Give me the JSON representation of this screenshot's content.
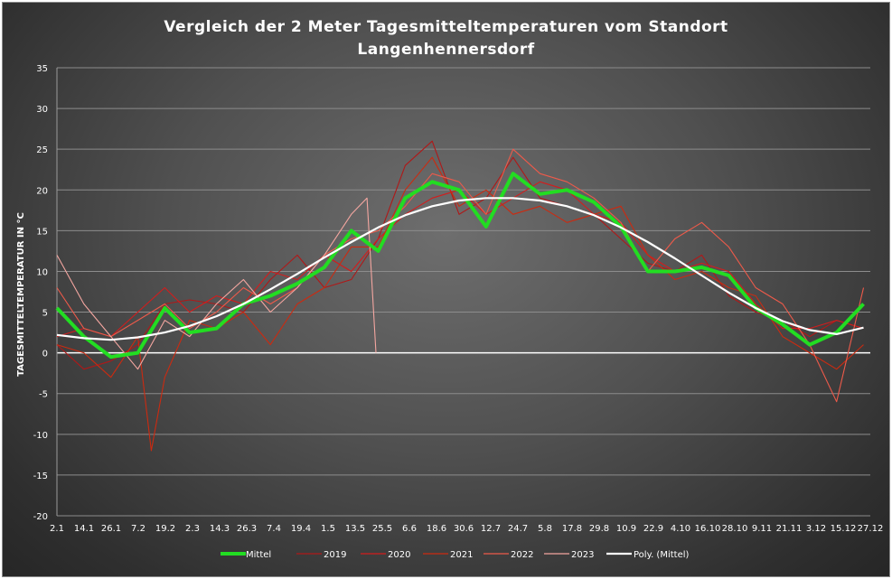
{
  "chart_data": {
    "type": "line",
    "title_line1": "Vergleich der 2 Meter Tagesmitteltemperaturen vom Standort",
    "title_line2": "Langenhennersdorf",
    "ylabel": "TAGESMITTELTEMPERATUR IN °C",
    "xlabel": "",
    "ylim": [
      -20,
      35
    ],
    "yticks": [
      35,
      30,
      25,
      20,
      15,
      10,
      5,
      0,
      -5,
      -10,
      -15,
      -20
    ],
    "grid": true,
    "legend_position": "bottom",
    "x_tick_labels": [
      "2.1",
      "14.1",
      "26.1",
      "7.2",
      "19.2",
      "2.3",
      "14.3",
      "26.3",
      "7.4",
      "19.4",
      "1.5",
      "13.5",
      "25.5",
      "6.6",
      "18.6",
      "30.6",
      "12.7",
      "24.7",
      "5.8",
      "17.8",
      "29.8",
      "10.9",
      "22.9",
      "4.10",
      "16.10",
      "28.10",
      "9.11",
      "21.11",
      "3.12",
      "15.12",
      "27.12"
    ],
    "x_day_range": [
      2,
      364
    ],
    "series": [
      {
        "name": "Mittel",
        "color": "#22dd22",
        "x": [
          2,
          14,
          26,
          38,
          50,
          61,
          73,
          85,
          97,
          109,
          121,
          133,
          145,
          157,
          169,
          181,
          193,
          205,
          217,
          229,
          241,
          253,
          265,
          277,
          289,
          301,
          313,
          325,
          337,
          349,
          361
        ],
        "values": [
          5.5,
          2.0,
          -0.5,
          0.0,
          5.5,
          2.5,
          3.0,
          6.0,
          7.0,
          8.5,
          10.5,
          15.0,
          12.5,
          19.0,
          21.0,
          20.0,
          15.5,
          22.0,
          19.5,
          20.0,
          18.5,
          15.5,
          10.0,
          10.0,
          10.5,
          9.5,
          5.5,
          3.5,
          1.0,
          2.5,
          6.0
        ]
      },
      {
        "name": "2019",
        "color": "#b01818",
        "x": [
          2,
          14,
          26,
          38,
          50,
          61,
          73,
          85,
          97,
          109,
          121,
          133,
          145,
          157,
          169,
          181,
          193,
          205,
          217,
          229,
          241,
          253,
          265,
          277,
          289,
          301,
          313,
          325,
          337,
          349,
          361
        ],
        "values": [
          1.0,
          -2.0,
          -1.0,
          1.0,
          6.0,
          6.5,
          6.0,
          5.0,
          9.0,
          12.0,
          8.0,
          9.0,
          14.0,
          23.0,
          26.0,
          17.0,
          19.0,
          24.0,
          19.0,
          18.0,
          17.0,
          14.0,
          11.0,
          10.0,
          12.0,
          7.0,
          5.0,
          4.0,
          2.0,
          4.0,
          3.0
        ]
      },
      {
        "name": "2020",
        "color": "#d41c1c",
        "x": [
          2,
          14,
          26,
          38,
          50,
          61,
          73,
          85,
          97,
          109,
          121,
          133,
          145,
          157,
          169,
          181,
          193,
          205,
          217,
          229,
          241,
          253,
          265,
          277,
          289,
          301,
          313,
          325,
          337,
          349,
          361
        ],
        "values": [
          2.0,
          3.0,
          2.0,
          5.0,
          8.0,
          5.0,
          7.0,
          6.0,
          10.0,
          9.0,
          12.0,
          10.0,
          14.0,
          17.0,
          19.0,
          20.0,
          17.0,
          19.0,
          21.0,
          20.0,
          17.0,
          16.0,
          12.0,
          10.0,
          11.0,
          10.0,
          6.0,
          3.0,
          3.0,
          4.0,
          3.0
        ]
      },
      {
        "name": "2021",
        "color": "#cc2a10",
        "x": [
          2,
          14,
          26,
          38,
          44,
          50,
          61,
          73,
          85,
          97,
          109,
          121,
          133,
          145,
          157,
          169,
          181,
          193,
          205,
          217,
          229,
          241,
          253,
          265,
          277,
          289,
          301,
          313,
          325,
          337,
          349,
          361
        ],
        "values": [
          1.0,
          0.0,
          -3.0,
          2.0,
          -12.0,
          -3.0,
          4.0,
          3.0,
          5.0,
          1.0,
          6.0,
          8.0,
          13.0,
          13.0,
          20.0,
          24.0,
          18.0,
          20.0,
          17.0,
          18.0,
          16.0,
          17.0,
          18.0,
          12.0,
          9.0,
          10.0,
          8.0,
          7.0,
          2.0,
          0.0,
          -2.0,
          1.0
        ]
      },
      {
        "name": "2022",
        "color": "#ee5a4a",
        "x": [
          2,
          14,
          26,
          38,
          50,
          61,
          73,
          85,
          97,
          109,
          121,
          133,
          145,
          157,
          169,
          181,
          193,
          205,
          217,
          229,
          241,
          253,
          265,
          277,
          289,
          301,
          313,
          325,
          337,
          349,
          361
        ],
        "values": [
          8.0,
          3.0,
          2.0,
          4.0,
          6.0,
          3.0,
          5.0,
          8.0,
          6.0,
          8.0,
          12.0,
          14.0,
          15.0,
          18.0,
          22.0,
          21.0,
          17.0,
          25.0,
          22.0,
          21.0,
          19.0,
          16.0,
          10.0,
          14.0,
          16.0,
          13.0,
          8.0,
          6.0,
          1.0,
          -6.0,
          8.0
        ]
      },
      {
        "name": "2023",
        "color": "#f4a6a0",
        "x": [
          2,
          14,
          26,
          38,
          50,
          61,
          73,
          85,
          97,
          109,
          121,
          133,
          140,
          144
        ],
        "values": [
          12.0,
          6.0,
          2.0,
          -2.0,
          4.0,
          2.0,
          6.0,
          9.0,
          5.0,
          8.0,
          12.0,
          17.0,
          19.0,
          0.0
        ]
      },
      {
        "name": "Poly. (Mittel)",
        "color": "#ffffff",
        "x": [
          2,
          14,
          26,
          38,
          50,
          61,
          73,
          85,
          97,
          109,
          121,
          133,
          145,
          157,
          169,
          181,
          193,
          205,
          217,
          229,
          241,
          253,
          265,
          277,
          289,
          301,
          313,
          325,
          337,
          349,
          361
        ],
        "values": [
          2.2,
          1.8,
          1.6,
          1.9,
          2.5,
          3.3,
          4.5,
          6.0,
          7.8,
          9.7,
          11.7,
          13.6,
          15.4,
          16.9,
          18.0,
          18.7,
          19.0,
          19.0,
          18.7,
          18.0,
          16.9,
          15.4,
          13.6,
          11.6,
          9.5,
          7.4,
          5.5,
          3.9,
          2.8,
          2.3,
          3.1
        ]
      }
    ]
  }
}
